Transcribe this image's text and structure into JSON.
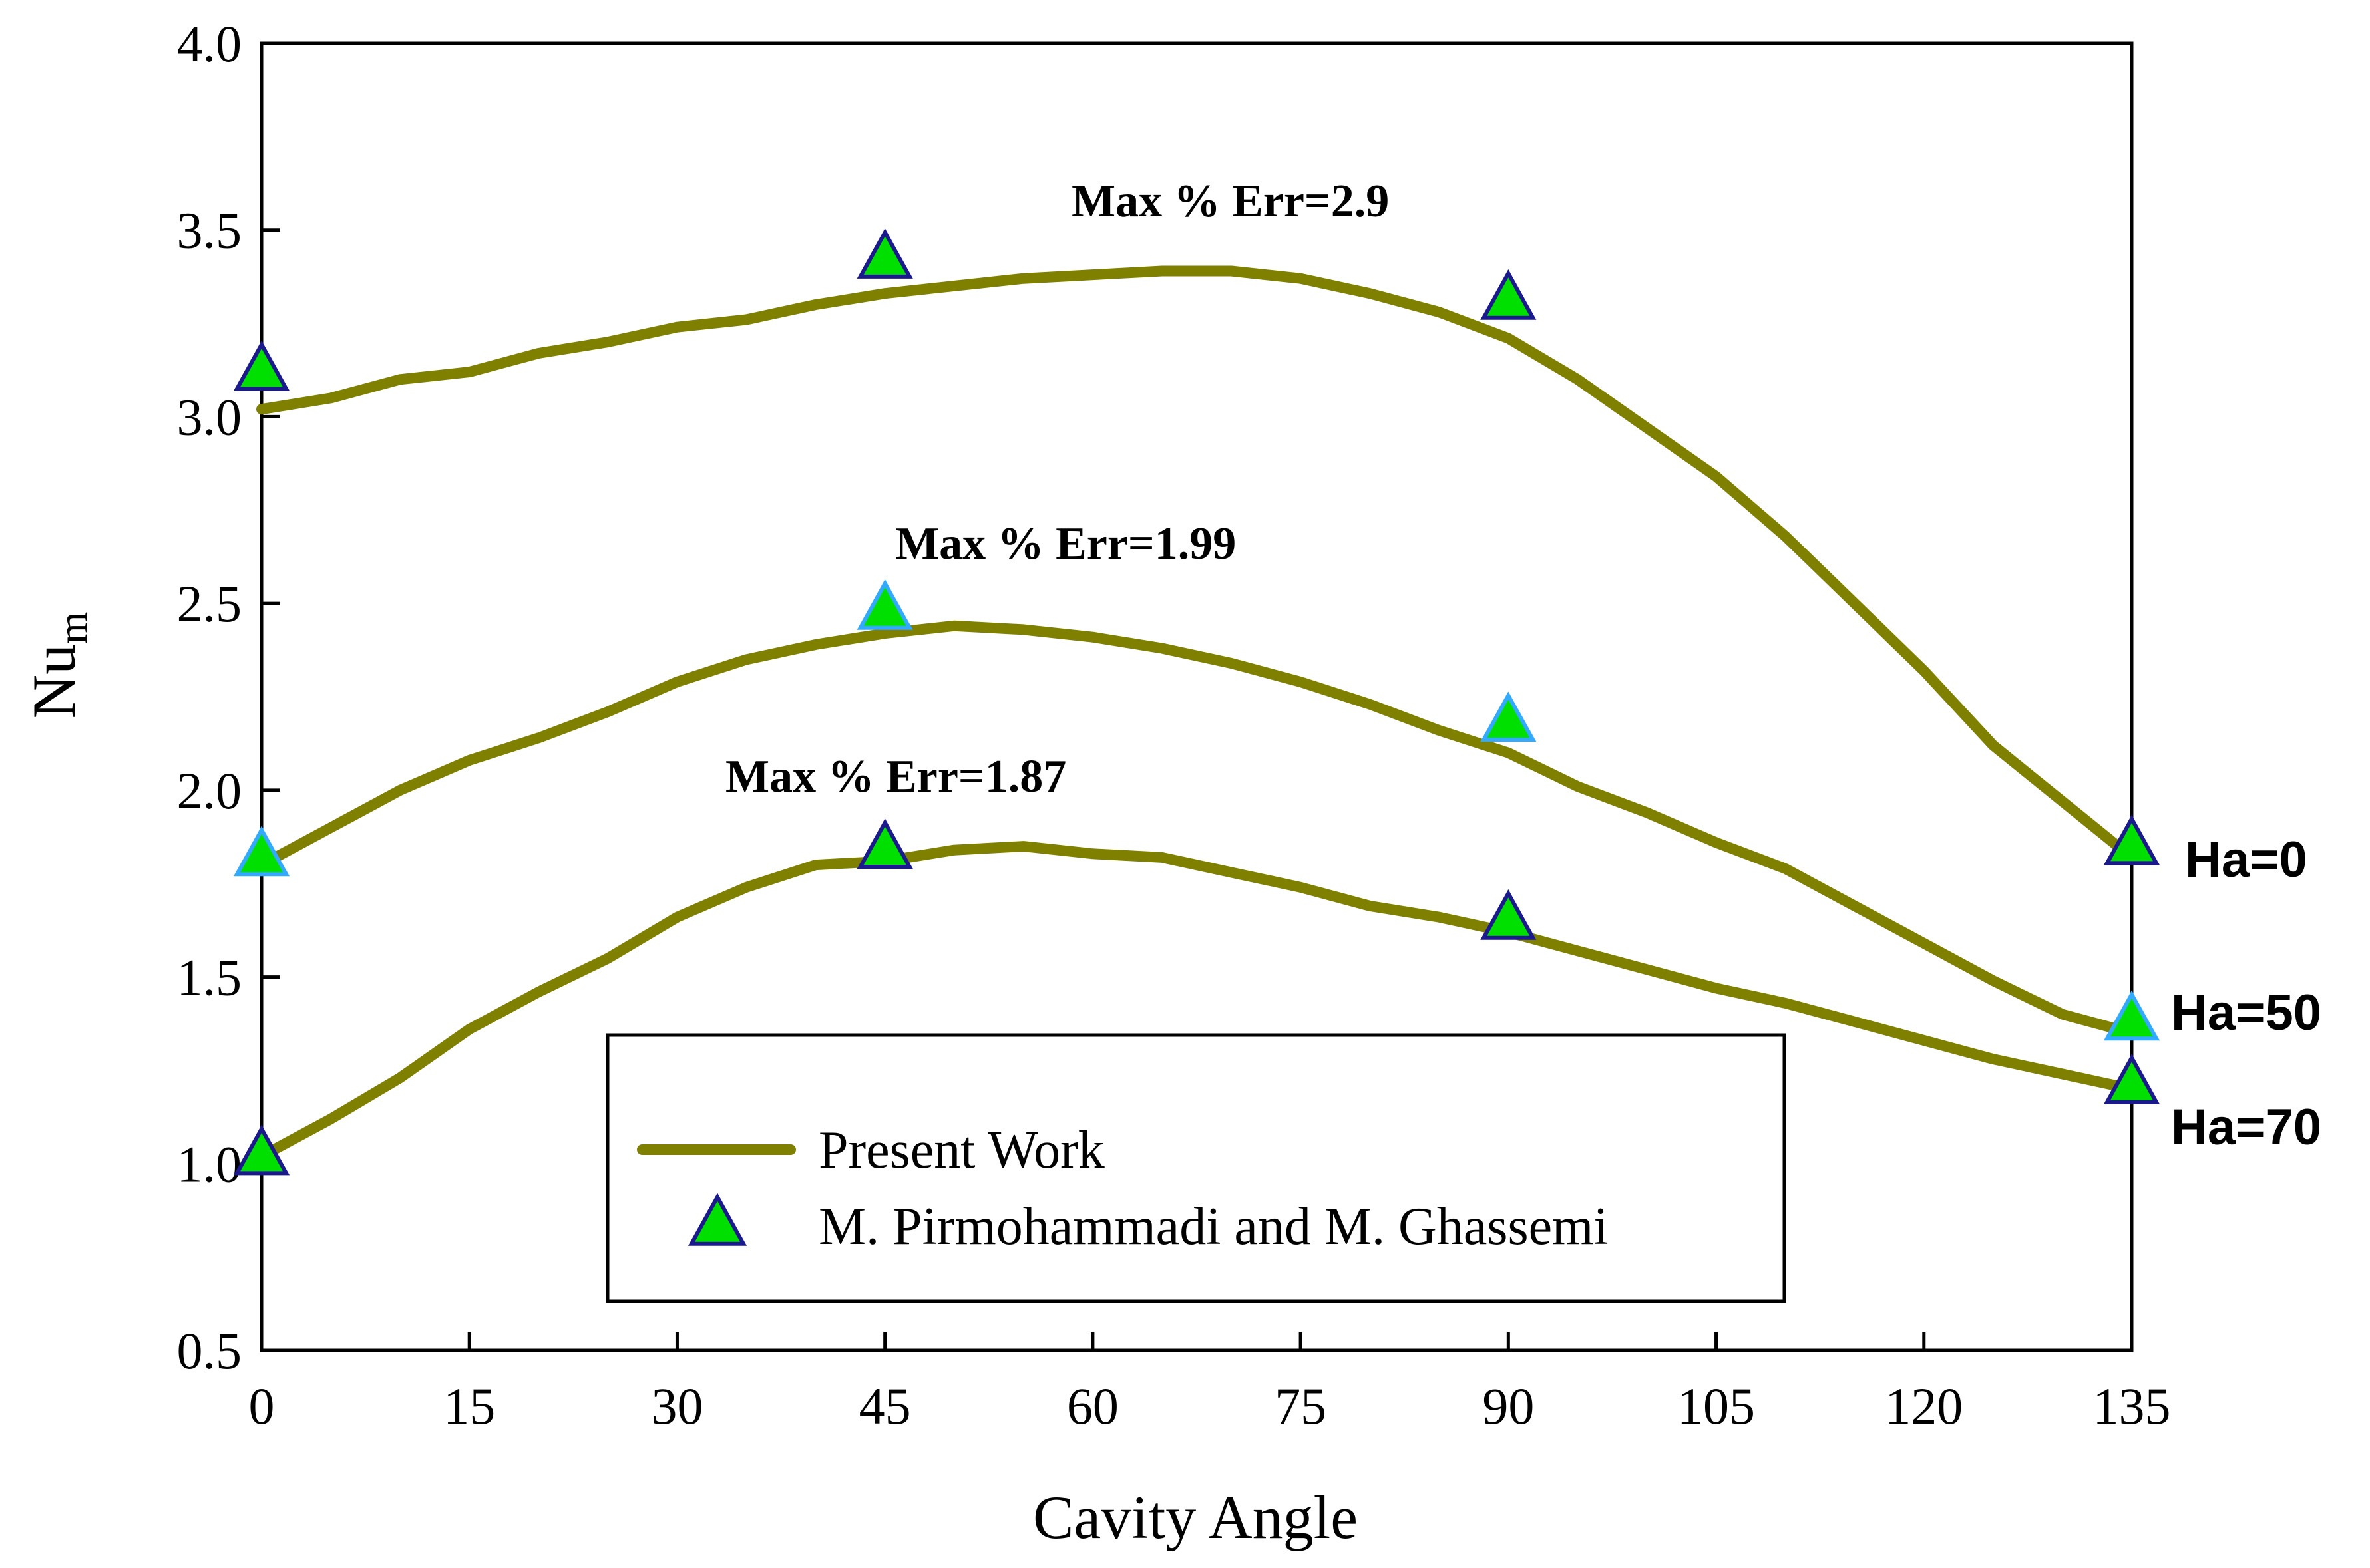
{
  "chart_data": {
    "type": "line",
    "xlabel": "Cavity Angle",
    "ylabel_base": "Nu",
    "ylabel_sub": "m",
    "xlim": [
      0,
      135
    ],
    "ylim": [
      0.5,
      4.0
    ],
    "x_ticks": [
      0,
      15,
      30,
      45,
      60,
      75,
      90,
      105,
      120,
      135
    ],
    "y_ticks": [
      0.5,
      1.0,
      1.5,
      2.0,
      2.5,
      3.0,
      3.5,
      4.0
    ],
    "y_tick_labels": [
      "0.5",
      "1.0",
      "1.5",
      "2.0",
      "2.5",
      "3.0",
      "3.5",
      "4.0"
    ],
    "grid": false,
    "colors": {
      "line": "#7f7f00",
      "marker_fill": "#00e000",
      "marker_edge_dark": "#1a1a8c",
      "marker_edge_light": "#33aaff"
    },
    "legend": {
      "placement": "bottom-center",
      "entries": [
        {
          "name": "Present Work",
          "kind": "line"
        },
        {
          "name": "M. Pirmohammadi and M. Ghassemi",
          "kind": "marker-triangle"
        }
      ]
    },
    "series": [
      {
        "name": "Ha=0",
        "label": "Ha=0",
        "annotation": "Max % Err=2.9",
        "marker_edge": "dark",
        "line": {
          "x": [
            0,
            5,
            10,
            15,
            20,
            25,
            30,
            35,
            40,
            45,
            50,
            55,
            60,
            65,
            70,
            75,
            80,
            85,
            90,
            95,
            100,
            105,
            110,
            115,
            120,
            125,
            130,
            135
          ],
          "y": [
            3.02,
            3.05,
            3.1,
            3.12,
            3.17,
            3.2,
            3.24,
            3.26,
            3.3,
            3.33,
            3.35,
            3.37,
            3.38,
            3.39,
            3.39,
            3.37,
            3.33,
            3.28,
            3.21,
            3.1,
            2.97,
            2.84,
            2.68,
            2.5,
            2.32,
            2.12,
            1.97,
            1.82
          ]
        },
        "markers": {
          "x": [
            0,
            45,
            90,
            135
          ],
          "y": [
            3.12,
            3.42,
            3.31,
            1.85
          ]
        }
      },
      {
        "name": "Ha=50",
        "label": "Ha=50",
        "annotation": "Max % Err=1.99",
        "marker_edge": "light",
        "line": {
          "x": [
            0,
            5,
            10,
            15,
            20,
            25,
            30,
            35,
            40,
            45,
            50,
            55,
            60,
            65,
            70,
            75,
            80,
            85,
            90,
            95,
            100,
            105,
            110,
            115,
            120,
            125,
            130,
            135
          ],
          "y": [
            1.8,
            1.9,
            2.0,
            2.08,
            2.14,
            2.21,
            2.29,
            2.35,
            2.39,
            2.42,
            2.44,
            2.43,
            2.41,
            2.38,
            2.34,
            2.29,
            2.23,
            2.16,
            2.1,
            2.01,
            1.94,
            1.86,
            1.79,
            1.69,
            1.59,
            1.49,
            1.4,
            1.35
          ]
        },
        "markers": {
          "x": [
            0,
            45,
            90,
            135
          ],
          "y": [
            1.82,
            2.48,
            2.18,
            1.38
          ]
        }
      },
      {
        "name": "Ha=70",
        "label": "Ha=70",
        "annotation": "Max % Err=1.87",
        "marker_edge": "dark",
        "line": {
          "x": [
            0,
            5,
            10,
            15,
            20,
            25,
            30,
            35,
            40,
            45,
            50,
            55,
            60,
            65,
            70,
            75,
            80,
            85,
            90,
            95,
            100,
            105,
            110,
            115,
            120,
            125,
            130,
            135
          ],
          "y": [
            1.02,
            1.12,
            1.23,
            1.36,
            1.46,
            1.55,
            1.66,
            1.74,
            1.8,
            1.81,
            1.84,
            1.85,
            1.83,
            1.82,
            1.78,
            1.74,
            1.69,
            1.66,
            1.62,
            1.57,
            1.52,
            1.47,
            1.43,
            1.38,
            1.33,
            1.28,
            1.24,
            1.2
          ]
        },
        "markers": {
          "x": [
            0,
            45,
            90,
            135
          ],
          "y": [
            1.02,
            1.84,
            1.65,
            1.21
          ]
        }
      }
    ]
  }
}
